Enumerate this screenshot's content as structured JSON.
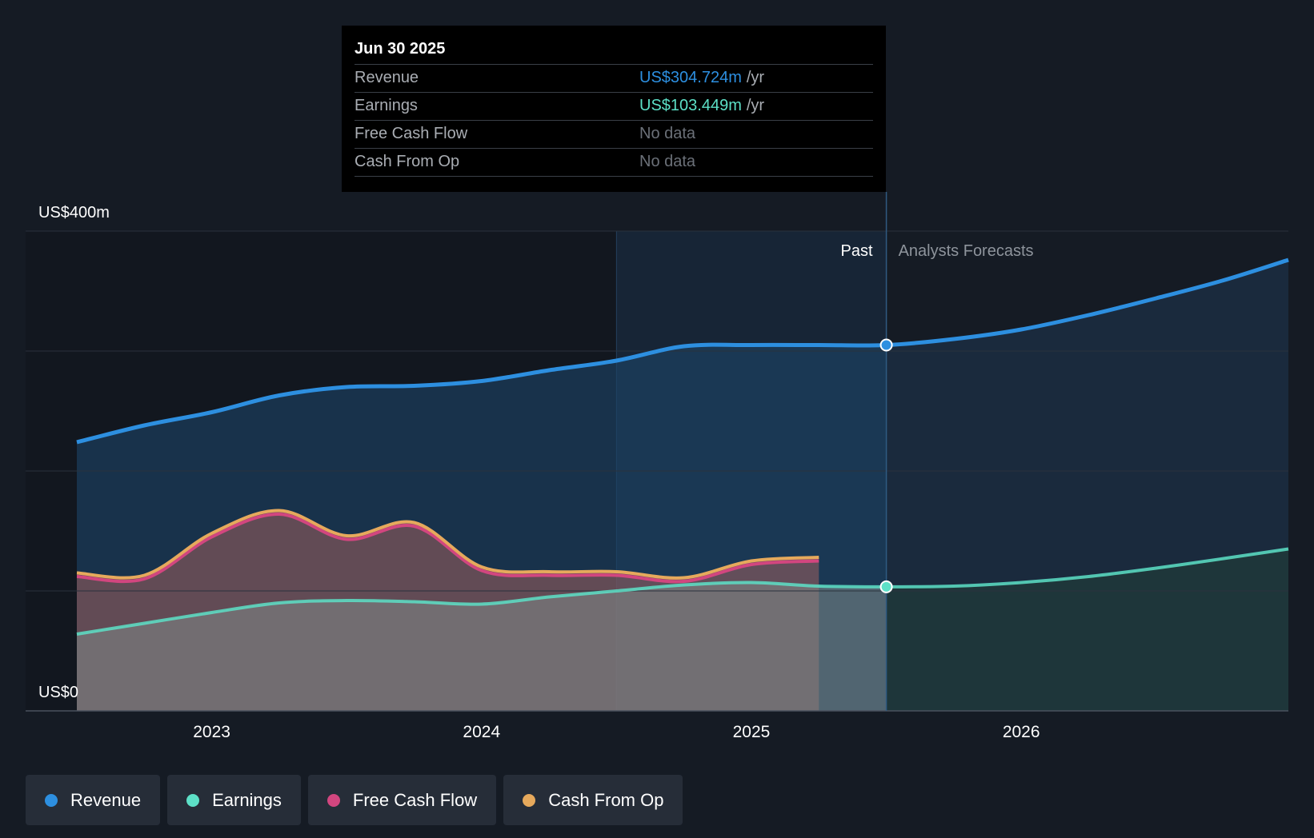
{
  "tooltip": {
    "date": "Jun 30 2025",
    "rows": [
      {
        "label": "Revenue",
        "value": "US$304.724m",
        "unit": "/yr",
        "color": "#2d8fe0"
      },
      {
        "label": "Earnings",
        "value": "US$103.449m",
        "unit": "/yr",
        "color": "#5de0c7"
      },
      {
        "label": "Free Cash Flow",
        "value": "No data"
      },
      {
        "label": "Cash From Op",
        "value": "No data"
      }
    ]
  },
  "legend": [
    {
      "label": "Revenue",
      "color": "#2d8fe0"
    },
    {
      "label": "Earnings",
      "color": "#5de0c7"
    },
    {
      "label": "Free Cash Flow",
      "color": "#d2467f"
    },
    {
      "label": "Cash From Op",
      "color": "#e6a95c"
    }
  ],
  "chart_data": {
    "type": "area",
    "title": "",
    "y_axis_top_label": "US$400m",
    "y_axis_bottom_label": "US$0",
    "ylim": [
      0,
      400
    ],
    "xlim": [
      2022.5,
      2026.99
    ],
    "x_ticks": [
      2023,
      2024,
      2025,
      2026
    ],
    "x_tick_labels": [
      "2023",
      "2024",
      "2025",
      "2026"
    ],
    "past_label": "Past",
    "forecast_label": "Analysts Forecasts",
    "divider_x": 2025.5,
    "highlight_start_x": 2024.5,
    "series": [
      {
        "name": "Revenue",
        "color": "#2d8fe0",
        "x": [
          2022.5,
          2022.75,
          2023.0,
          2023.25,
          2023.5,
          2023.75,
          2024.0,
          2024.25,
          2024.5,
          2024.75,
          2025.0,
          2025.25,
          2025.5,
          2025.75,
          2026.0,
          2026.25,
          2026.5,
          2026.75,
          2026.99
        ],
        "values": [
          224,
          238,
          249,
          263,
          270,
          271,
          275,
          284,
          292,
          304,
          305,
          305,
          305,
          310,
          318,
          330,
          344,
          359,
          376
        ]
      },
      {
        "name": "Earnings",
        "color": "#5de0c7",
        "x": [
          2022.5,
          2022.75,
          2023.0,
          2023.25,
          2023.5,
          2023.75,
          2024.0,
          2024.25,
          2024.5,
          2024.75,
          2025.0,
          2025.25,
          2025.5,
          2025.75,
          2026.0,
          2026.25,
          2026.5,
          2026.75,
          2026.99
        ],
        "values": [
          64,
          73,
          82,
          90,
          92,
          91,
          89,
          95,
          100,
          105,
          107,
          104,
          103.4,
          104,
          107,
          112,
          119,
          127,
          135
        ]
      },
      {
        "name": "Free Cash Flow",
        "color": "#d2467f",
        "x": [
          2022.5,
          2022.75,
          2023.0,
          2023.25,
          2023.5,
          2023.75,
          2024.0,
          2024.25,
          2024.5,
          2024.75,
          2025.0,
          2025.25
        ],
        "values": [
          112,
          110,
          145,
          164,
          143,
          154,
          117,
          113,
          113,
          108,
          122,
          125
        ]
      },
      {
        "name": "Cash From Op",
        "color": "#e6a95c",
        "x": [
          2022.5,
          2022.75,
          2023.0,
          2023.25,
          2023.5,
          2023.75,
          2024.0,
          2024.25,
          2024.5,
          2024.75,
          2025.0,
          2025.25
        ],
        "values": [
          115,
          113,
          148,
          167,
          146,
          157,
          120,
          116,
          116,
          111,
          125,
          128
        ]
      }
    ]
  }
}
